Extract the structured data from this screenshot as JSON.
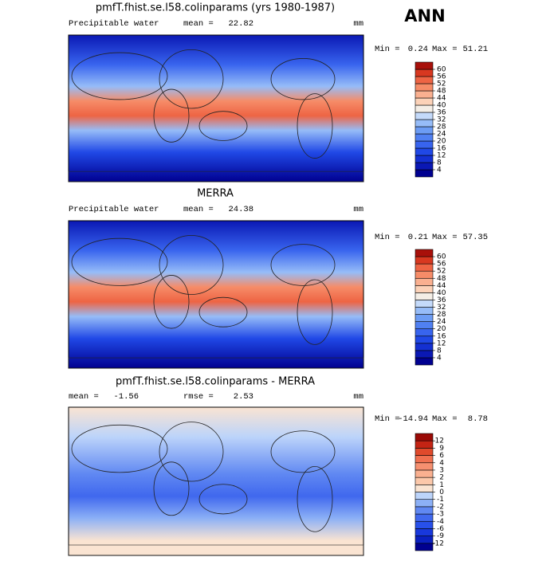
{
  "header": {
    "season": "ANN"
  },
  "panels": [
    {
      "title": "pmfT.fhist.se.l58.colinparams (yrs 1980-1987)",
      "field": "Precipitable water",
      "stats": [
        {
          "label": "mean =",
          "value": 22.82
        }
      ],
      "units": "mm",
      "min_label": "Min =",
      "min": 0.24,
      "max_label": "Max =",
      "max": 51.21,
      "levels": [
        4,
        8,
        12,
        16,
        20,
        24,
        28,
        32,
        36,
        40,
        44,
        48,
        52,
        56,
        60
      ],
      "colors": [
        "#000090",
        "#0a18b4",
        "#1430d2",
        "#2048e6",
        "#3864ee",
        "#5080f2",
        "#6c9cf4",
        "#96bcf8",
        "#c4dafa",
        "#f4eee6",
        "#fcd2b8",
        "#fab090",
        "#f68c68",
        "#ee6444",
        "#d83820",
        "#a8100a"
      ]
    },
    {
      "title": "MERRA",
      "field": "Precipitable water",
      "stats": [
        {
          "label": "mean =",
          "value": 24.38
        }
      ],
      "units": "mm",
      "min_label": "Min =",
      "min": 0.21,
      "max_label": "Max =",
      "max": 57.35,
      "levels": [
        4,
        8,
        12,
        16,
        20,
        24,
        28,
        32,
        36,
        40,
        44,
        48,
        52,
        56,
        60
      ],
      "colors": [
        "#000090",
        "#0a18b4",
        "#1430d2",
        "#2048e6",
        "#3864ee",
        "#5080f2",
        "#6c9cf4",
        "#96bcf8",
        "#c4dafa",
        "#f4eee6",
        "#fcd2b8",
        "#fab090",
        "#f68c68",
        "#ee6444",
        "#d83820",
        "#a8100a"
      ]
    },
    {
      "title": "pmfT.fhist.se.l58.colinparams - MERRA",
      "field": null,
      "stats": [
        {
          "label": "mean =",
          "value": -1.56
        },
        {
          "label": "rmse =",
          "value": 2.53
        }
      ],
      "units": "mm",
      "min_label": "Min =",
      "min": -14.94,
      "max_label": "Max =",
      "max": 8.78,
      "levels": [
        -12,
        -9,
        -6,
        -4,
        -3,
        -2,
        -1,
        0,
        1,
        2,
        3,
        4,
        6,
        9,
        12
      ],
      "colors": [
        "#000090",
        "#0a20c0",
        "#1838dc",
        "#2850ea",
        "#4068ee",
        "#6088f2",
        "#8cb0f6",
        "#bcd4fa",
        "#fae4d2",
        "#fcc8aa",
        "#fab090",
        "#f69070",
        "#f07050",
        "#e04a2c",
        "#c42414",
        "#9a0a06"
      ]
    }
  ]
}
